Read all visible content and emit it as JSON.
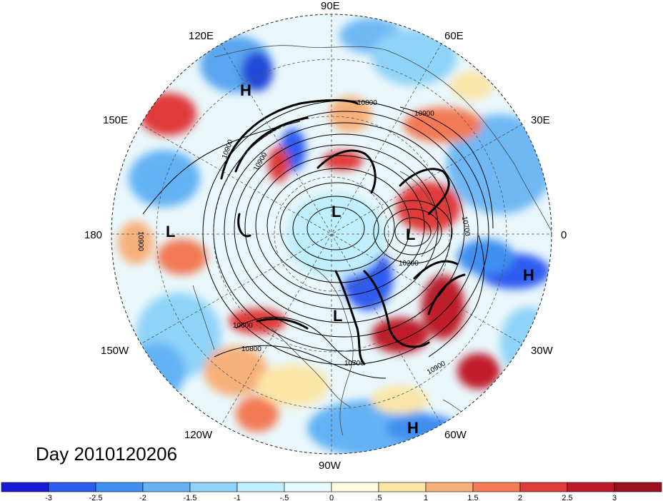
{
  "date_label": "Day 2010120206",
  "longitude_labels": {
    "top": "90E",
    "top_right": "60E",
    "right_upper": "30E",
    "right": "0",
    "right_lower": "30W",
    "bottom_right": "60W",
    "bottom": "90W",
    "bottom_left": "120W",
    "left_lower": "150W",
    "left": "180",
    "left_upper": "150E",
    "top_left": "120E"
  },
  "pressure_centers": [
    "H",
    "L",
    "L",
    "L",
    "H",
    "L",
    "H"
  ],
  "contour_labels": [
    "10800",
    "10900",
    "10900",
    "10900",
    "10700",
    "10200",
    "10900",
    "10800",
    "10600",
    "10700",
    "10900"
  ],
  "colorbar": {
    "ticks": [
      "-3",
      "-2.5",
      "-2",
      "-1.5",
      "-1",
      "-.5",
      "0",
      ".5",
      "1",
      "1.5",
      "2",
      "2.5",
      "3"
    ],
    "colors": [
      "#1a1ad6",
      "#2e5cf0",
      "#3f8ef0",
      "#64b2f4",
      "#8fd3f8",
      "#bfeefc",
      "#e6fbff",
      "#fffbe0",
      "#fbe6a8",
      "#f7b07a",
      "#f27a55",
      "#e03a3a",
      "#c01b2b",
      "#9b0f1e"
    ]
  },
  "colors": {
    "contour": "#000000",
    "grid": "#555555",
    "coast": "#444444"
  }
}
